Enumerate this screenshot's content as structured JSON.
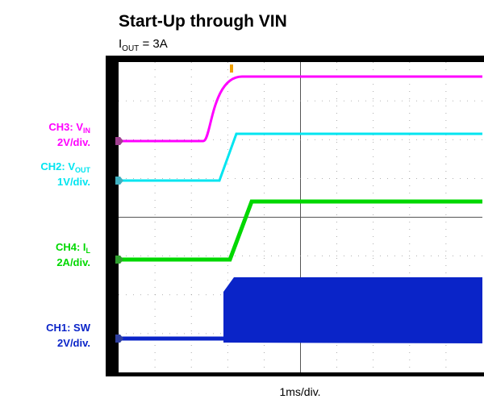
{
  "header": {
    "title": "Start-Up through VIN",
    "subtitle": {
      "main": "I",
      "sub": "OUT",
      "rest": " = 3A"
    }
  },
  "channels": [
    {
      "name": {
        "main": "CH3: V",
        "sub": "IN"
      },
      "scale": "2V/div.",
      "color": "#ff00ff"
    },
    {
      "name": {
        "main": "CH2: V",
        "sub": "OUT"
      },
      "scale": "1V/div.",
      "color": "#00e5f0"
    },
    {
      "name": {
        "main": "CH4: I",
        "sub": "L"
      },
      "scale": "2A/div.",
      "color": "#00d800"
    },
    {
      "name": {
        "main": "CH1: SW",
        "sub": ""
      },
      "scale": "2V/div.",
      "color": "#0a24c8"
    }
  ],
  "x_label": "1ms/div."
}
